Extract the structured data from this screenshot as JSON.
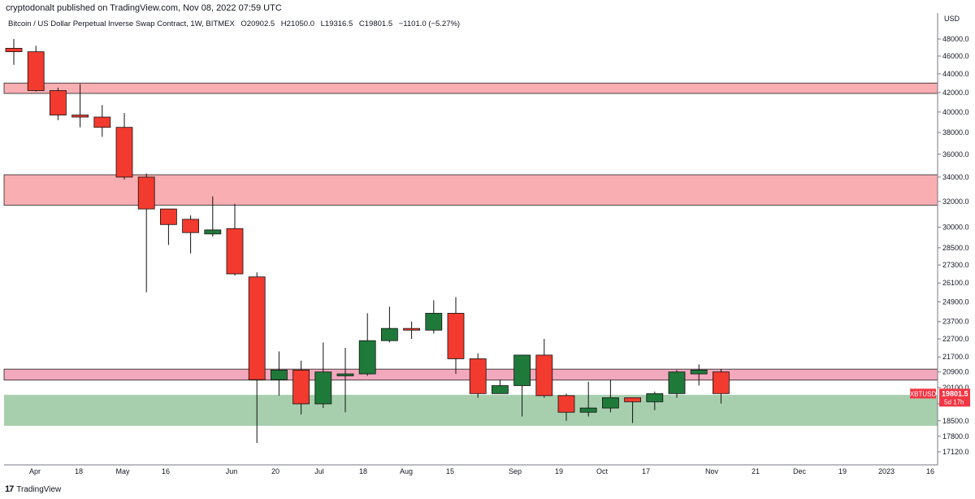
{
  "header": {
    "publisher": "cryptodonalt published on TradingView.com, Nov 08, 2022 07:59 UTC"
  },
  "legend": {
    "title": "Bitcoin / US Dollar Perpetual Inverse Swap Contract, 1W, BITMEX",
    "open": "O20902.5",
    "high": "H21050.0",
    "low": "L19316.5",
    "close": "C19801.5",
    "change": "−1101.0 (−5.27%)"
  },
  "footer": {
    "brand": "TradingView",
    "logo": "17"
  },
  "colors": {
    "bull": "#1f7a3a",
    "bear": "#f23a2e",
    "resistance_zone": "#f9aeb1",
    "resistance_zone_small": "#f2a9bd",
    "support_zone": "#a7cfae",
    "badge": "#f23645"
  },
  "chart_data": {
    "type": "candlestick",
    "timeframe": "1W",
    "symbol": "XBTUSD",
    "y_axis": {
      "currency": "USD",
      "scale": "log",
      "ticks": [
        "48000.0",
        "46000.0",
        "44000.0",
        "42000.0",
        "40000.0",
        "38000.0",
        "36000.0",
        "34000.0",
        "32000.0",
        "30000.0",
        "28500.0",
        "27300.0",
        "26100.0",
        "24900.0",
        "23700.0",
        "22700.0",
        "21700.0",
        "20900.0",
        "20100.0",
        "19300.0",
        "18500.0",
        "17800.0",
        "17120.0"
      ]
    },
    "x_axis": {
      "ticks": [
        "Apr",
        "18",
        "May",
        "16",
        "Jun",
        "20",
        "Jul",
        "18",
        "Aug",
        "15",
        "Sep",
        "19",
        "Oct",
        "17",
        "Nov",
        "21",
        "Dec",
        "19",
        "2023",
        "16"
      ]
    },
    "last_price": {
      "label": "XBTUSD",
      "value": "19801.5",
      "countdown": "5d 17h"
    },
    "zones": [
      {
        "type": "resistance",
        "low": 41900,
        "high": 43000
      },
      {
        "type": "resistance",
        "low": 31700,
        "high": 34200
      },
      {
        "type": "resistance",
        "low": 20480,
        "high": 21050
      },
      {
        "type": "support",
        "low": 18270,
        "high": 19740
      }
    ],
    "candles": [
      {
        "week": "2022-03-28",
        "o": 46900,
        "h": 48000,
        "l": 45000,
        "c": 46500
      },
      {
        "week": "2022-04-04",
        "o": 46500,
        "h": 47200,
        "l": 42100,
        "c": 42200
      },
      {
        "week": "2022-04-11",
        "o": 42200,
        "h": 42500,
        "l": 39200,
        "c": 39700
      },
      {
        "week": "2022-04-18",
        "o": 39700,
        "h": 42900,
        "l": 38500,
        "c": 39500
      },
      {
        "week": "2022-04-25",
        "o": 39500,
        "h": 40700,
        "l": 37600,
        "c": 38500
      },
      {
        "week": "2022-05-02",
        "o": 38500,
        "h": 39900,
        "l": 33800,
        "c": 34000
      },
      {
        "week": "2022-05-09",
        "o": 34000,
        "h": 34300,
        "l": 25500,
        "c": 31400
      },
      {
        "week": "2022-05-16",
        "o": 31400,
        "h": 31400,
        "l": 28700,
        "c": 30200
      },
      {
        "week": "2022-05-23",
        "o": 30600,
        "h": 30900,
        "l": 28100,
        "c": 29600
      },
      {
        "week": "2022-05-30",
        "o": 29500,
        "h": 32400,
        "l": 29300,
        "c": 29800
      },
      {
        "week": "2022-06-06",
        "o": 29900,
        "h": 31800,
        "l": 26600,
        "c": 26700
      },
      {
        "week": "2022-06-13",
        "o": 26500,
        "h": 26800,
        "l": 17500,
        "c": 20500
      },
      {
        "week": "2022-06-20",
        "o": 20500,
        "h": 22000,
        "l": 19700,
        "c": 21000
      },
      {
        "week": "2022-06-27",
        "o": 21000,
        "h": 21500,
        "l": 18800,
        "c": 19300
      },
      {
        "week": "2022-07-04",
        "o": 19300,
        "h": 22500,
        "l": 19100,
        "c": 20900
      },
      {
        "week": "2022-07-11",
        "o": 20700,
        "h": 22200,
        "l": 18900,
        "c": 20800
      },
      {
        "week": "2022-07-18",
        "o": 20800,
        "h": 24200,
        "l": 20700,
        "c": 22600
      },
      {
        "week": "2022-07-25",
        "o": 22600,
        "h": 24600,
        "l": 22500,
        "c": 23300
      },
      {
        "week": "2022-08-01",
        "o": 23300,
        "h": 23700,
        "l": 22700,
        "c": 23200
      },
      {
        "week": "2022-08-08",
        "o": 23200,
        "h": 25000,
        "l": 23000,
        "c": 24200
      },
      {
        "week": "2022-08-15",
        "o": 24200,
        "h": 25200,
        "l": 20800,
        "c": 21600
      },
      {
        "week": "2022-08-22",
        "o": 21600,
        "h": 21900,
        "l": 19600,
        "c": 19800
      },
      {
        "week": "2022-08-29",
        "o": 19800,
        "h": 20500,
        "l": 19800,
        "c": 20200
      },
      {
        "week": "2022-09-05",
        "o": 20200,
        "h": 21800,
        "l": 18700,
        "c": 21800
      },
      {
        "week": "2022-09-12",
        "o": 21800,
        "h": 22700,
        "l": 19600,
        "c": 19700
      },
      {
        "week": "2022-09-19",
        "o": 19700,
        "h": 19800,
        "l": 18500,
        "c": 18900
      },
      {
        "week": "2022-09-26",
        "o": 18900,
        "h": 20400,
        "l": 18700,
        "c": 19100
      },
      {
        "week": "2022-10-03",
        "o": 19100,
        "h": 20500,
        "l": 18900,
        "c": 19600
      },
      {
        "week": "2022-10-10",
        "o": 19600,
        "h": 19600,
        "l": 18400,
        "c": 19400
      },
      {
        "week": "2022-10-17",
        "o": 19400,
        "h": 19900,
        "l": 19000,
        "c": 19800
      },
      {
        "week": "2022-10-24",
        "o": 19800,
        "h": 21000,
        "l": 19600,
        "c": 20900
      },
      {
        "week": "2022-10-31",
        "o": 20800,
        "h": 21300,
        "l": 20200,
        "c": 21000
      },
      {
        "week": "2022-11-07",
        "o": 20902.5,
        "h": 21050.0,
        "l": 19316.5,
        "c": 19801.5
      }
    ]
  }
}
